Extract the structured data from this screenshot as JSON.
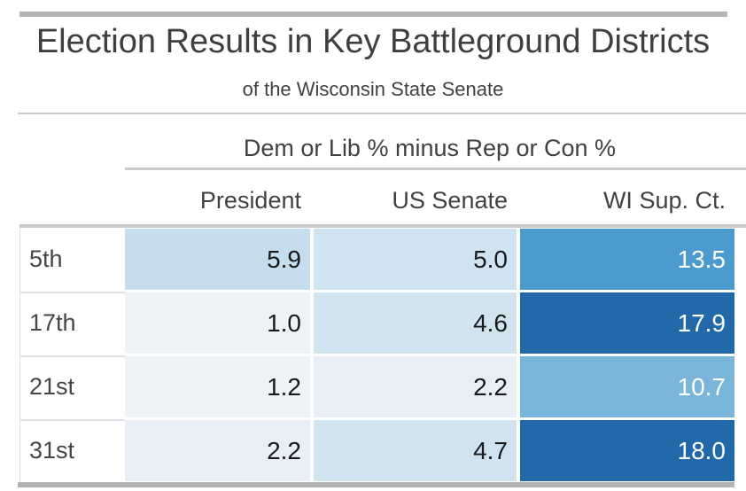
{
  "header": {
    "title": "Election Results in Key Battleground Districts",
    "subtitle": "of the Wisconsin State Senate"
  },
  "table": {
    "span_header": "Dem or Lib % minus Rep or Con %",
    "columns": [
      "President",
      "US Senate",
      "WI Sup. Ct."
    ],
    "rows": [
      {
        "label": "5th",
        "cells": [
          {
            "value": "5.9",
            "bg": "#c5ddec",
            "fg": "#17191b"
          },
          {
            "value": "5.0",
            "bg": "#cfe3f0",
            "fg": "#17191b"
          },
          {
            "value": "13.5",
            "bg": "#4c9bcf",
            "fg": "#ffffff"
          }
        ]
      },
      {
        "label": "17th",
        "cells": [
          {
            "value": "1.0",
            "bg": "#eff3f6",
            "fg": "#17191b"
          },
          {
            "value": "4.6",
            "bg": "#d2e4ef",
            "fg": "#17191b"
          },
          {
            "value": "17.9",
            "bg": "#2169a8",
            "fg": "#ffffff"
          }
        ]
      },
      {
        "label": "21st",
        "cells": [
          {
            "value": "1.2",
            "bg": "#eff3f6",
            "fg": "#17191b"
          },
          {
            "value": "2.2",
            "bg": "#e8eef5",
            "fg": "#17191b"
          },
          {
            "value": "10.7",
            "bg": "#7ab5da",
            "fg": "#ffffff"
          }
        ]
      },
      {
        "label": "31st",
        "cells": [
          {
            "value": "2.2",
            "bg": "#e8eef5",
            "fg": "#17191b"
          },
          {
            "value": "4.7",
            "bg": "#d1e3ef",
            "fg": "#17191b"
          },
          {
            "value": "18.0",
            "bg": "#2169a8",
            "fg": "#ffffff"
          }
        ]
      }
    ]
  },
  "colors": {
    "accent_dark_blue": "#2169a8",
    "accent_mid_blue": "#4c9bcf",
    "accent_light_blue": "#c5ddec",
    "rule_gray": "#c9cbcd",
    "bar_gray": "#b2b4b6"
  },
  "chart_data": {
    "type": "heatmap",
    "title": "Election Results in Key Battleground Districts",
    "subtitle": "of the Wisconsin State Senate",
    "group_header": "Dem or Lib % minus Rep or Con %",
    "columns": [
      "President",
      "US Senate",
      "WI Sup. Ct."
    ],
    "rows": [
      "5th",
      "17th",
      "21st",
      "31st"
    ],
    "values": [
      [
        5.9,
        5.0,
        13.5
      ],
      [
        1.0,
        4.6,
        17.9
      ],
      [
        1.2,
        2.2,
        10.7
      ],
      [
        2.2,
        4.7,
        18.0
      ]
    ],
    "value_meaning": "Dem or Lib % minus Rep or Con %",
    "color_scale": "light-to-dark blue, higher value = darker",
    "layout": "row labels left, values right-aligned in shaded cells"
  }
}
